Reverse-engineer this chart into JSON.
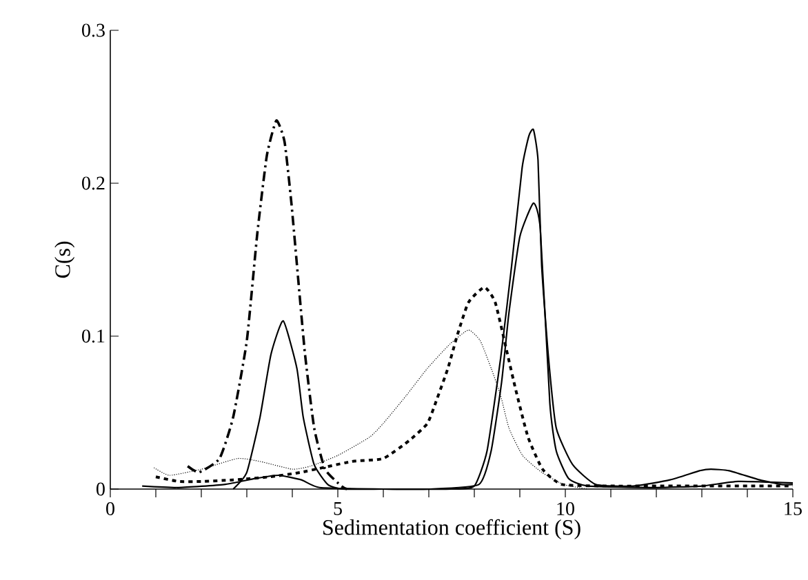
{
  "chart_data": {
    "type": "line",
    "xlabel": "Sedimentation coefficient (S)",
    "ylabel": "C(s)",
    "xlim": [
      0,
      15
    ],
    "ylim": [
      0,
      0.3
    ],
    "xticks": [
      0,
      5,
      10,
      15
    ],
    "yticks": [
      0,
      0.1,
      0.2,
      0.3
    ],
    "grid": false,
    "marker": "none",
    "series": [
      {
        "color": "#000000",
        "line_style": "dashdot",
        "x": [
          1.7,
          1.95,
          2.4,
          2.7,
          3.0,
          3.23,
          3.44,
          3.65,
          3.83,
          3.98,
          4.13,
          4.28,
          4.48,
          4.72,
          5.08,
          5.2
        ],
        "values": [
          0.015,
          0.011,
          0.02,
          0.047,
          0.097,
          0.167,
          0.218,
          0.241,
          0.227,
          0.187,
          0.137,
          0.088,
          0.04,
          0.013,
          0.002,
          0
        ]
      },
      {
        "color": "#000000",
        "line_style": "solid",
        "x": [
          2.7,
          3.0,
          3.29,
          3.53,
          3.8,
          4.1,
          4.24,
          4.48,
          4.78,
          5.1,
          6,
          7,
          8.1,
          8.37,
          8.6,
          8.76,
          9.0,
          9.3,
          9.45,
          9.66,
          9.8,
          10.07,
          10.5,
          12,
          13,
          13.8,
          15
        ],
        "values": [
          0,
          0.011,
          0.047,
          0.088,
          0.11,
          0.079,
          0.047,
          0.016,
          0.003,
          0,
          0,
          0,
          0.003,
          0.025,
          0.07,
          0.115,
          0.165,
          0.187,
          0.17,
          0.056,
          0.025,
          0.007,
          0.002,
          0.001,
          0.002,
          0.005,
          0.004
        ]
      },
      {
        "color": "#000000",
        "line_style": "solid",
        "x": [
          0.7,
          1.5,
          2.5,
          3.2,
          3.7,
          4.2,
          4.6,
          6,
          7.5,
          8.0,
          8.28,
          8.58,
          8.82,
          9.05,
          9.2,
          9.3,
          9.4,
          9.48,
          9.63,
          9.8,
          10.16,
          10.67,
          11.5,
          12.3,
          12.95,
          13.2,
          13.6,
          14.27,
          14.75,
          15
        ],
        "values": [
          0.002,
          0.001,
          0.003,
          0.007,
          0.009,
          0.006,
          0.001,
          0,
          0,
          0.002,
          0.025,
          0.086,
          0.146,
          0.21,
          0.231,
          0.235,
          0.215,
          0.146,
          0.086,
          0.04,
          0.016,
          0.003,
          0.002,
          0.006,
          0.012,
          0.013,
          0.012,
          0.006,
          0.003,
          0.003
        ]
      },
      {
        "color": "#000000",
        "line_style": "dashed",
        "x": [
          1.0,
          1.5,
          2.0,
          2.7,
          3.5,
          4.2,
          5.3,
          6.0,
          6.58,
          6.97,
          7.18,
          7.42,
          7.63,
          7.87,
          8.22,
          8.46,
          8.73,
          8.91,
          9.18,
          9.5,
          9.93,
          11,
          12,
          13,
          14,
          15
        ],
        "values": [
          0.008,
          0.005,
          0.005,
          0.006,
          0.008,
          0.011,
          0.018,
          0.02,
          0.032,
          0.043,
          0.059,
          0.079,
          0.101,
          0.122,
          0.132,
          0.122,
          0.088,
          0.065,
          0.034,
          0.013,
          0.003,
          0.002,
          0.002,
          0.002,
          0.002,
          0.002
        ]
      },
      {
        "color": "#000000",
        "line_style": "dotted",
        "x": [
          0.96,
          1.3,
          2.0,
          2.8,
          3.3,
          4.0,
          4.4,
          5.0,
          5.7,
          6.0,
          6.5,
          6.97,
          7.47,
          7.87,
          8.13,
          8.37,
          8.58,
          8.76,
          9.06,
          9.48,
          9.96,
          10.5
        ],
        "values": [
          0.014,
          0.009,
          0.013,
          0.02,
          0.018,
          0.013,
          0.015,
          0.022,
          0.034,
          0.043,
          0.061,
          0.079,
          0.095,
          0.104,
          0.097,
          0.079,
          0.061,
          0.04,
          0.022,
          0.011,
          0.003,
          0
        ]
      }
    ]
  }
}
